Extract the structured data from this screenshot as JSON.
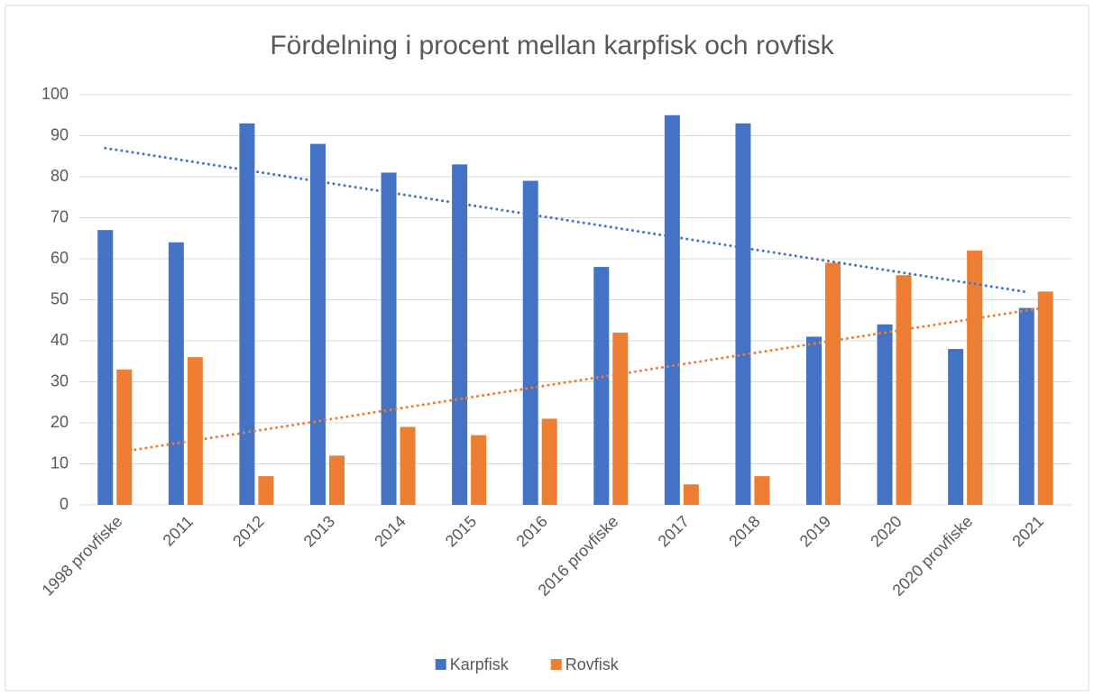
{
  "chart_data": {
    "type": "bar",
    "title": "Fördelning i procent mellan karpfisk och rovfisk",
    "categories": [
      "1998 provfiske",
      "2011",
      "2012",
      "2013",
      "2014",
      "2015",
      "2016",
      "2016 provfiske",
      "2017",
      "2018",
      "2019",
      "2020",
      "2020 provfiske",
      "2021"
    ],
    "series": [
      {
        "name": "Karpfisk",
        "color": "#4472c4",
        "values": [
          67,
          64,
          93,
          88,
          81,
          83,
          79,
          58,
          95,
          93,
          41,
          44,
          38,
          48
        ]
      },
      {
        "name": "Rovfisk",
        "color": "#ed7d31",
        "values": [
          33,
          36,
          7,
          12,
          19,
          17,
          21,
          42,
          5,
          7,
          59,
          56,
          62,
          52
        ]
      }
    ],
    "ylim": [
      0,
      100
    ],
    "yticks": [
      0,
      10,
      20,
      30,
      40,
      50,
      60,
      70,
      80,
      90,
      100
    ],
    "grid": true,
    "trendline": "linear",
    "legend": "bottom"
  }
}
